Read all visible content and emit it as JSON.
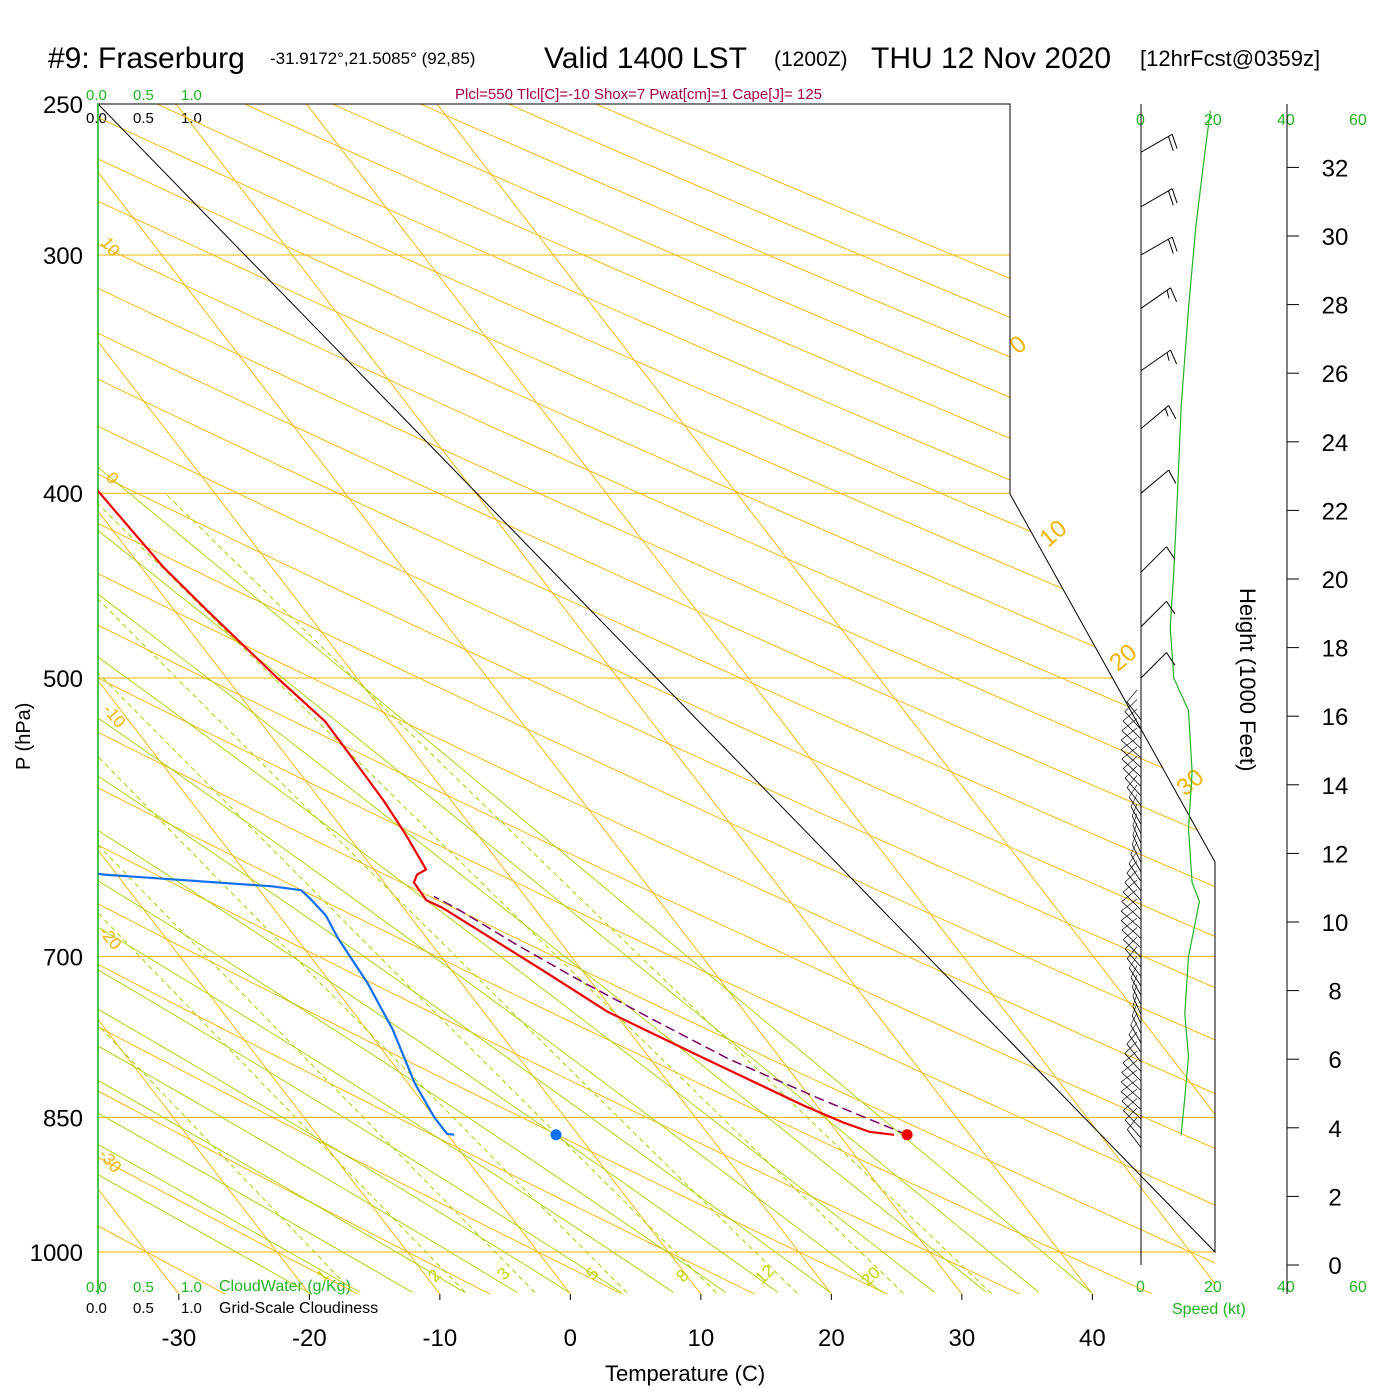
{
  "header": {
    "station": "#9: Fraserburg",
    "coords": "-31.9172°,21.5085° (92,85)",
    "valid_main": "Valid 1400 LST",
    "valid_z": "(1200Z)",
    "date": "THU 12 Nov 2020",
    "forecast": "[12hrFcst@0359z]",
    "indices": "Plcl=550 Tlcl[C]=-10 Shox=7 Pwat[cm]=1 Cape[J]= 125"
  },
  "scales": {
    "cloudwater_ticks": [
      "0.0",
      "0.5",
      "1.0"
    ],
    "cloudiness_ticks": [
      "0.0",
      "0.5",
      "1.0"
    ],
    "cloudwater_label": "CloudWater (g/Kg)",
    "cloudiness_label": "Grid-Scale Cloudiness",
    "speed_ticks": [
      "0",
      "20",
      "40",
      "60"
    ],
    "speed_label": "Speed (kt)"
  },
  "colors": {
    "isobar": "#f0b400",
    "dry_adiabat": "#f0b400",
    "moist_adiabat": "#a8d000",
    "mixing_ratio": "#a8d000",
    "temperature": "#ee0000",
    "dewpoint": "#1070f0",
    "parcel": "#7a0066",
    "cloud_scale": "#22b322"
  },
  "chart_data": {
    "type": "line",
    "title": "#9: Fraserburg",
    "xlabel": "Temperature (C)",
    "ylabel": "P (hPa)",
    "y2label": "Height (1000 Feet)",
    "x_ticks": [
      -30,
      -20,
      -10,
      0,
      10,
      20,
      30,
      40
    ],
    "p_ticks": [
      250,
      300,
      400,
      500,
      700,
      850,
      1000
    ],
    "height_ticks": [
      0,
      2,
      4,
      6,
      8,
      10,
      12,
      14,
      16,
      18,
      20,
      22,
      24,
      26,
      28,
      30,
      32
    ],
    "dry_adiabat_labels": [
      "10",
      "0",
      "-10",
      "-20",
      "-30"
    ],
    "moist_adiabat_labels": [
      "0",
      "10",
      "20",
      "30"
    ],
    "mixing_ratio_labels": [
      "1",
      "2",
      "3",
      "5",
      "8",
      "12",
      "20"
    ],
    "series": [
      {
        "name": "Temperature",
        "points": [
          [
            34.2,
            868
          ],
          [
            32.5,
            865
          ],
          [
            31,
            855
          ],
          [
            29,
            838
          ],
          [
            24,
            790
          ],
          [
            19.5,
            748
          ],
          [
            17,
            712
          ],
          [
            14.5,
            679
          ],
          [
            13,
            660
          ],
          [
            12.2,
            654
          ],
          [
            12.3,
            640
          ],
          [
            13.0,
            634
          ],
          [
            14,
            630
          ],
          [
            14.5,
            604
          ],
          [
            14.8,
            580
          ],
          [
            14.9,
            554
          ],
          [
            15.0,
            527
          ],
          [
            13.9,
            500
          ],
          [
            12.5,
            461
          ],
          [
            11.7,
            437
          ],
          [
            11.2,
            400
          ],
          [
            9.7,
            355
          ],
          [
            8.5,
            317
          ],
          [
            7.5,
            300
          ],
          [
            7.0,
            281
          ],
          [
            6.5,
            254
          ]
        ]
      },
      {
        "name": "Dewpoint",
        "points": [
          [
            0.5,
            868
          ],
          [
            0,
            867
          ],
          [
            0,
            850
          ],
          [
            0.5,
            816
          ],
          [
            2,
            764
          ],
          [
            2.8,
            723
          ],
          [
            3.2,
            684
          ],
          [
            3.6,
            666
          ],
          [
            3.4,
            653
          ],
          [
            3.2,
            646
          ],
          [
            1.2,
            643
          ],
          [
            -11,
            634
          ],
          [
            -14,
            629
          ],
          [
            -13.6,
            604
          ],
          [
            -15,
            583
          ],
          [
            -16.5,
            550
          ],
          [
            -20,
            533
          ],
          [
            -24,
            511
          ],
          [
            -24.5,
            468
          ],
          [
            -26,
            425
          ],
          [
            -28,
            400
          ],
          [
            -30.5,
            378
          ],
          [
            -32.3,
            359
          ],
          [
            -33.5,
            328
          ],
          [
            -35,
            310
          ],
          [
            -35.6,
            300
          ],
          [
            -36.5,
            283
          ],
          [
            -39.5,
            252
          ]
        ]
      },
      {
        "name": "Parcel",
        "points": [
          [
            35.2,
            868
          ],
          [
            30.5,
            830
          ],
          [
            26,
            792
          ],
          [
            22.5,
            755
          ],
          [
            19,
            718
          ],
          [
            16.5,
            690
          ],
          [
            14.0,
            660
          ],
          [
            13.0,
            651
          ]
        ]
      }
    ],
    "surface_temperature": 35.2,
    "surface_dewpoint": 8.3,
    "surface_pressure": 868,
    "wind_speed_kt": [
      [
        11,
        868
      ],
      [
        12,
        830
      ],
      [
        13,
        790
      ],
      [
        12,
        750
      ],
      [
        13,
        700
      ],
      [
        16,
        655
      ],
      [
        14,
        640
      ],
      [
        13,
        600
      ],
      [
        14,
        560
      ],
      [
        13,
        520
      ],
      [
        9,
        500
      ],
      [
        8,
        470
      ],
      [
        9,
        440
      ],
      [
        10,
        400
      ],
      [
        11,
        360
      ],
      [
        13,
        320
      ],
      [
        15,
        290
      ],
      [
        17,
        270
      ],
      [
        19,
        252
      ]
    ],
    "wind_barbs": [
      {
        "p": 500,
        "dir_deg": 225,
        "speed_kt": 10
      },
      {
        "p": 470,
        "dir_deg": 225,
        "speed_kt": 10
      },
      {
        "p": 440,
        "dir_deg": 225,
        "speed_kt": 10
      },
      {
        "p": 400,
        "dir_deg": 230,
        "speed_kt": 10
      },
      {
        "p": 370,
        "dir_deg": 230,
        "speed_kt": 15
      },
      {
        "p": 345,
        "dir_deg": 235,
        "speed_kt": 15
      },
      {
        "p": 320,
        "dir_deg": 235,
        "speed_kt": 15
      },
      {
        "p": 300,
        "dir_deg": 240,
        "speed_kt": 20
      },
      {
        "p": 283,
        "dir_deg": 240,
        "speed_kt": 20
      },
      {
        "p": 265,
        "dir_deg": 240,
        "speed_kt": 20
      }
    ]
  }
}
